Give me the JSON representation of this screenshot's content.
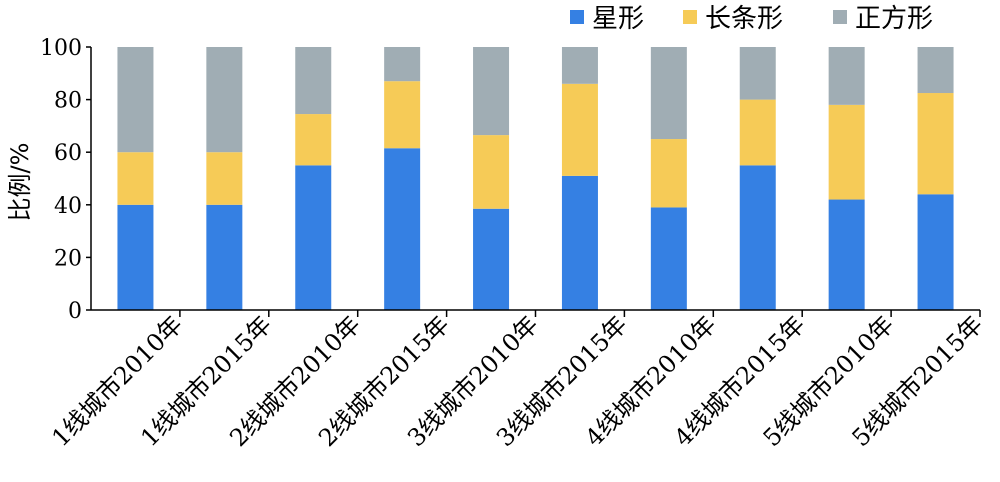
{
  "chart_data": {
    "type": "bar",
    "stacked": true,
    "title": "",
    "xlabel": "",
    "ylabel": "比例/%",
    "ylim": [
      0,
      100
    ],
    "yticks": [
      0,
      20,
      40,
      60,
      80,
      100
    ],
    "grid": false,
    "legend_position": "top-right",
    "categories": [
      "1线城市2010年",
      "1线城市2015年",
      "2线城市2010年",
      "2线城市2015年",
      "3线城市2010年",
      "3线城市2015年",
      "4线城市2010年",
      "4线城市2015年",
      "5线城市2010年",
      "5线城市2015年"
    ],
    "series": [
      {
        "name": "星形",
        "color": "#3580e3",
        "values": [
          40,
          40,
          55,
          61.5,
          38.5,
          51,
          39,
          55,
          42,
          44
        ]
      },
      {
        "name": "长条形",
        "color": "#f6cb57",
        "values": [
          20,
          20,
          19.5,
          25.5,
          28,
          35,
          26,
          25,
          36,
          38.5
        ]
      },
      {
        "name": "正方形",
        "color": "#a0adb4",
        "values": [
          40,
          40,
          25.5,
          13,
          33.5,
          14,
          35,
          20,
          22,
          17.5
        ]
      }
    ]
  }
}
